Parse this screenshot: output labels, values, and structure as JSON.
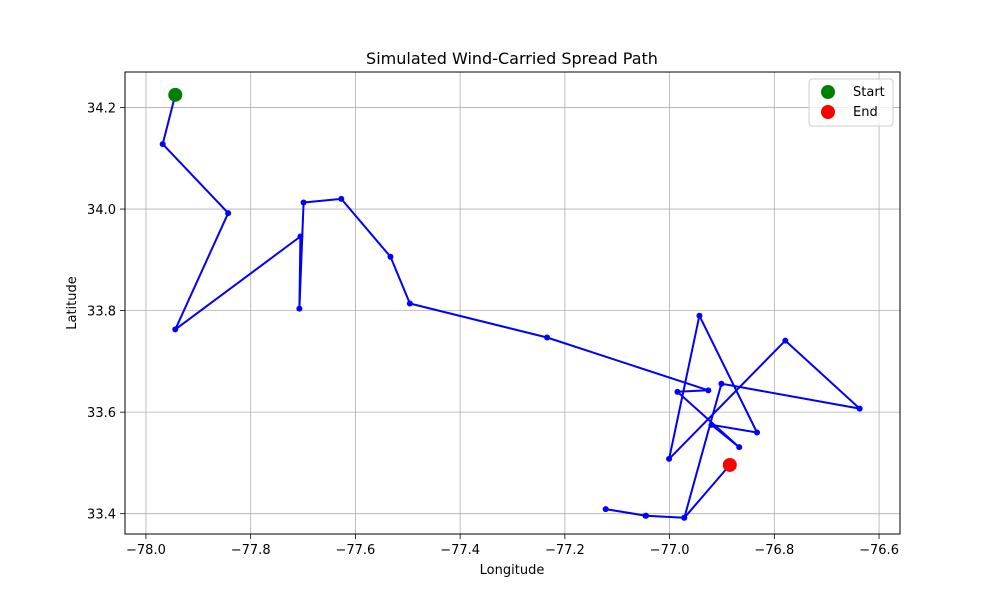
{
  "chart_data": {
    "type": "line",
    "title": "Simulated Wind-Carried Spread Path",
    "xlabel": "Longitude",
    "ylabel": "Latitude",
    "xlim": [
      -78.04,
      -76.56
    ],
    "ylim": [
      33.36,
      34.27
    ],
    "xticks": [
      -78.0,
      -77.8,
      -77.6,
      -77.4,
      -77.2,
      -77.0,
      -76.8,
      -76.6
    ],
    "yticks": [
      33.4,
      33.6,
      33.8,
      34.0,
      34.2
    ],
    "xtick_labels": [
      "−78.0",
      "−77.8",
      "−77.6",
      "−77.4",
      "−77.2",
      "−77.0",
      "−76.8",
      "−76.6"
    ],
    "ytick_labels": [
      "33.4",
      "33.6",
      "33.8",
      "34.0",
      "34.2"
    ],
    "grid": true,
    "legend_position": "top-right",
    "series": [
      {
        "color": "#0000ff",
        "x": [
          -77.944,
          -77.968,
          -77.843,
          -77.944,
          -77.705,
          -77.707,
          -77.699,
          -77.627,
          -77.533,
          -77.496,
          -77.234,
          -76.926,
          -76.985,
          -76.867,
          -76.92,
          -76.833,
          -76.943,
          -77.001,
          -76.779,
          -76.637,
          -76.901,
          -76.972,
          -77.046,
          -77.122,
          -77.045,
          -76.972,
          -76.885
        ],
        "y": [
          34.225,
          34.128,
          33.992,
          33.763,
          33.946,
          33.804,
          34.013,
          34.02,
          33.906,
          33.814,
          33.747,
          33.643,
          33.64,
          33.531,
          33.575,
          33.56,
          33.79,
          33.508,
          33.741,
          33.607,
          33.656,
          33.392,
          33.396,
          33.409,
          33.396,
          33.392,
          33.496
        ]
      }
    ],
    "markers": [
      {
        "name": "Start",
        "x": -77.944,
        "y": 34.225,
        "color": "#008000"
      },
      {
        "name": "End",
        "x": -76.885,
        "y": 33.496,
        "color": "#ff0000"
      }
    ]
  }
}
